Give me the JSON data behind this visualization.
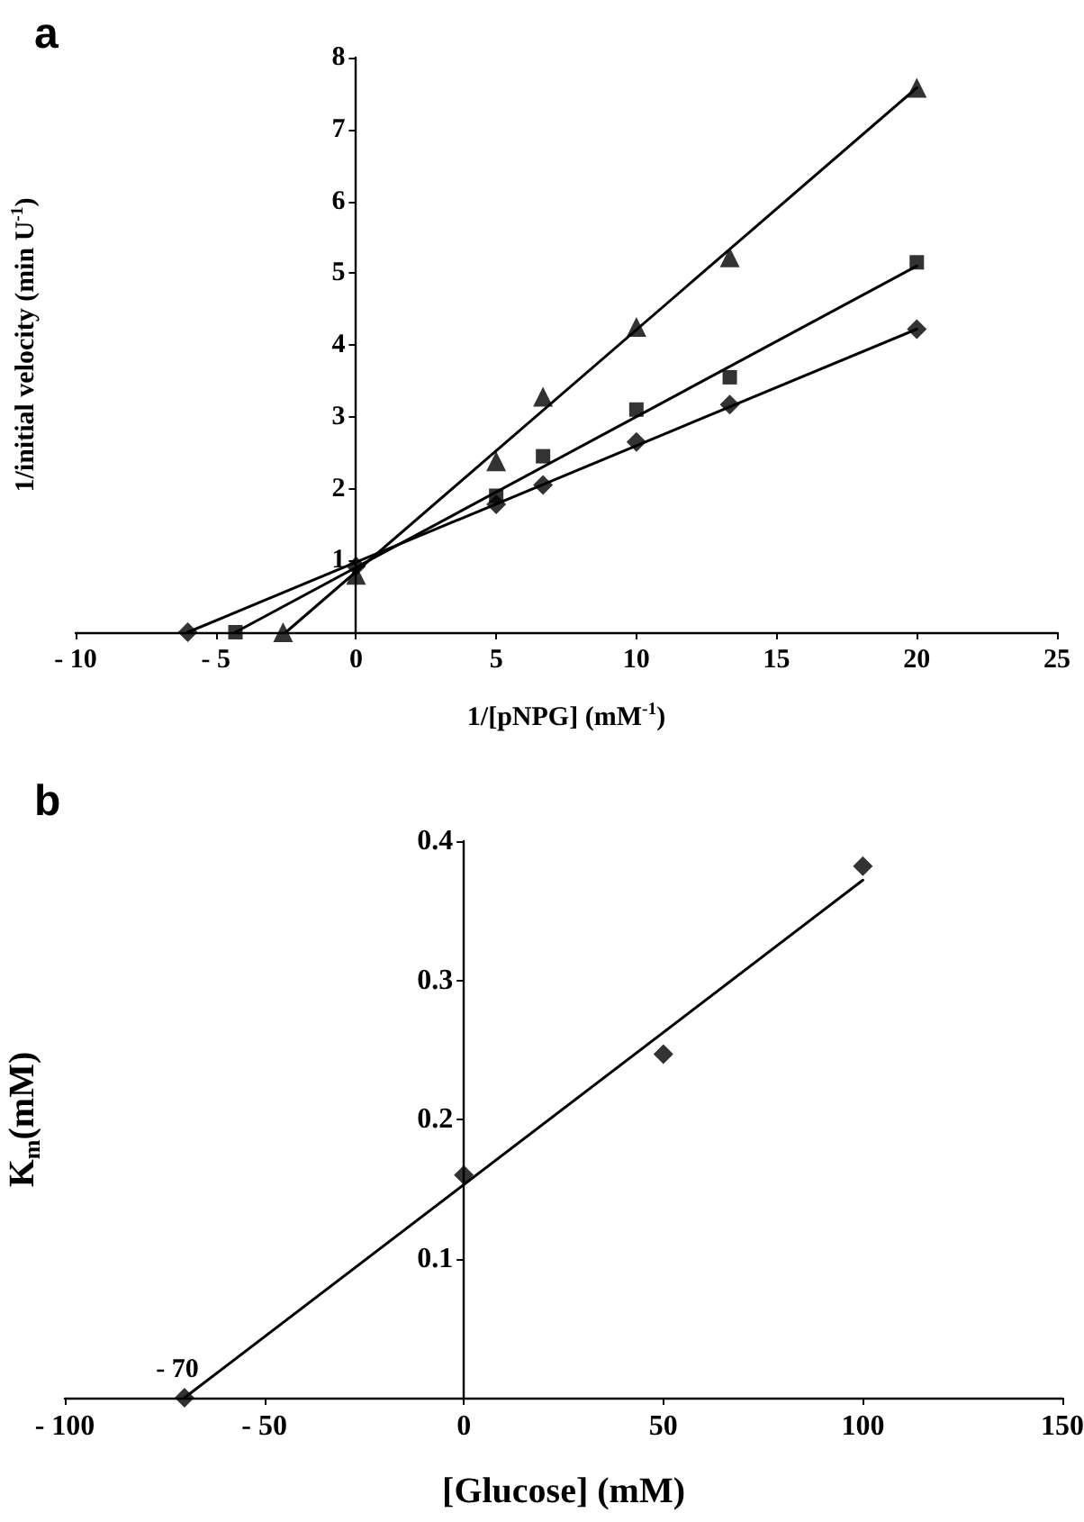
{
  "chart_data": [
    {
      "type": "scatter",
      "title": "a",
      "xlabel": "1/[pNPG] (mM$^{-1}$)",
      "ylabel": "1/initial velocity (min U$^{-1}$)",
      "xlim": [
        -10,
        25
      ],
      "xticks": [
        {
          "value": -10,
          "label": "- 10"
        },
        {
          "value": -5,
          "label": "- 5"
        },
        0,
        5,
        10,
        15,
        20,
        25
      ],
      "ylim": [
        0,
        8
      ],
      "yticks": [
        1,
        2,
        3,
        4,
        5,
        6,
        7,
        8
      ],
      "grid": false,
      "series": [
        {
          "type": "scatter",
          "marker": "triangle",
          "color": "#000000",
          "x": [
            -2.6,
            0,
            5,
            6.67,
            10,
            13.33,
            20
          ],
          "values": [
            0,
            0.8,
            2.38,
            3.28,
            4.25,
            5.22,
            7.58
          ]
        },
        {
          "type": "scatter",
          "marker": "square",
          "color": "#000000",
          "x": [
            -4.3,
            5,
            6.67,
            10,
            13.33,
            20
          ],
          "values": [
            0,
            1.9,
            2.45,
            3.1,
            3.55,
            5.15
          ]
        },
        {
          "type": "scatter",
          "marker": "diamond",
          "color": "#000000",
          "x": [
            -6,
            0,
            5,
            6.67,
            10,
            13.33,
            20
          ],
          "values": [
            0,
            0.92,
            1.78,
            2.05,
            2.65,
            3.17,
            4.22
          ]
        },
        {
          "type": "line",
          "marker": "none",
          "line_style": "solid",
          "color": "#000000",
          "x": [
            -2.5,
            20
          ],
          "values": [
            0,
            7.58
          ]
        },
        {
          "type": "line",
          "marker": "none",
          "line_style": "solid",
          "color": "#000000",
          "x": [
            -4.3,
            20
          ],
          "values": [
            0,
            5.1
          ]
        },
        {
          "type": "line",
          "marker": "none",
          "line_style": "solid",
          "color": "#000000",
          "x": [
            -6,
            20
          ],
          "values": [
            0,
            4.22
          ]
        }
      ]
    },
    {
      "type": "scatter",
      "title": "b",
      "xlabel": "[Glucose] (mM)",
      "ylabel": "K$_{m}$(mM)",
      "xlim": [
        -100,
        150
      ],
      "xticks": [
        {
          "value": -100,
          "label": "- 100"
        },
        {
          "value": -50,
          "label": "- 50"
        },
        0,
        50,
        100,
        150
      ],
      "ylim": [
        0,
        0.4
      ],
      "yticks": [
        0.1,
        0.2,
        0.3,
        0.4
      ],
      "grid": false,
      "annotations": [
        {
          "text": "- 70",
          "x": -70,
          "y": 0
        }
      ],
      "series": [
        {
          "type": "scatter",
          "marker": "diamond",
          "color": "#000000",
          "x": [
            -70,
            0,
            50,
            100
          ],
          "values": [
            0,
            0.16,
            0.247,
            0.382
          ]
        },
        {
          "type": "line",
          "marker": "none",
          "line_style": "solid",
          "color": "#000000",
          "x": [
            -70,
            100
          ],
          "values": [
            0,
            0.372
          ]
        }
      ]
    }
  ]
}
